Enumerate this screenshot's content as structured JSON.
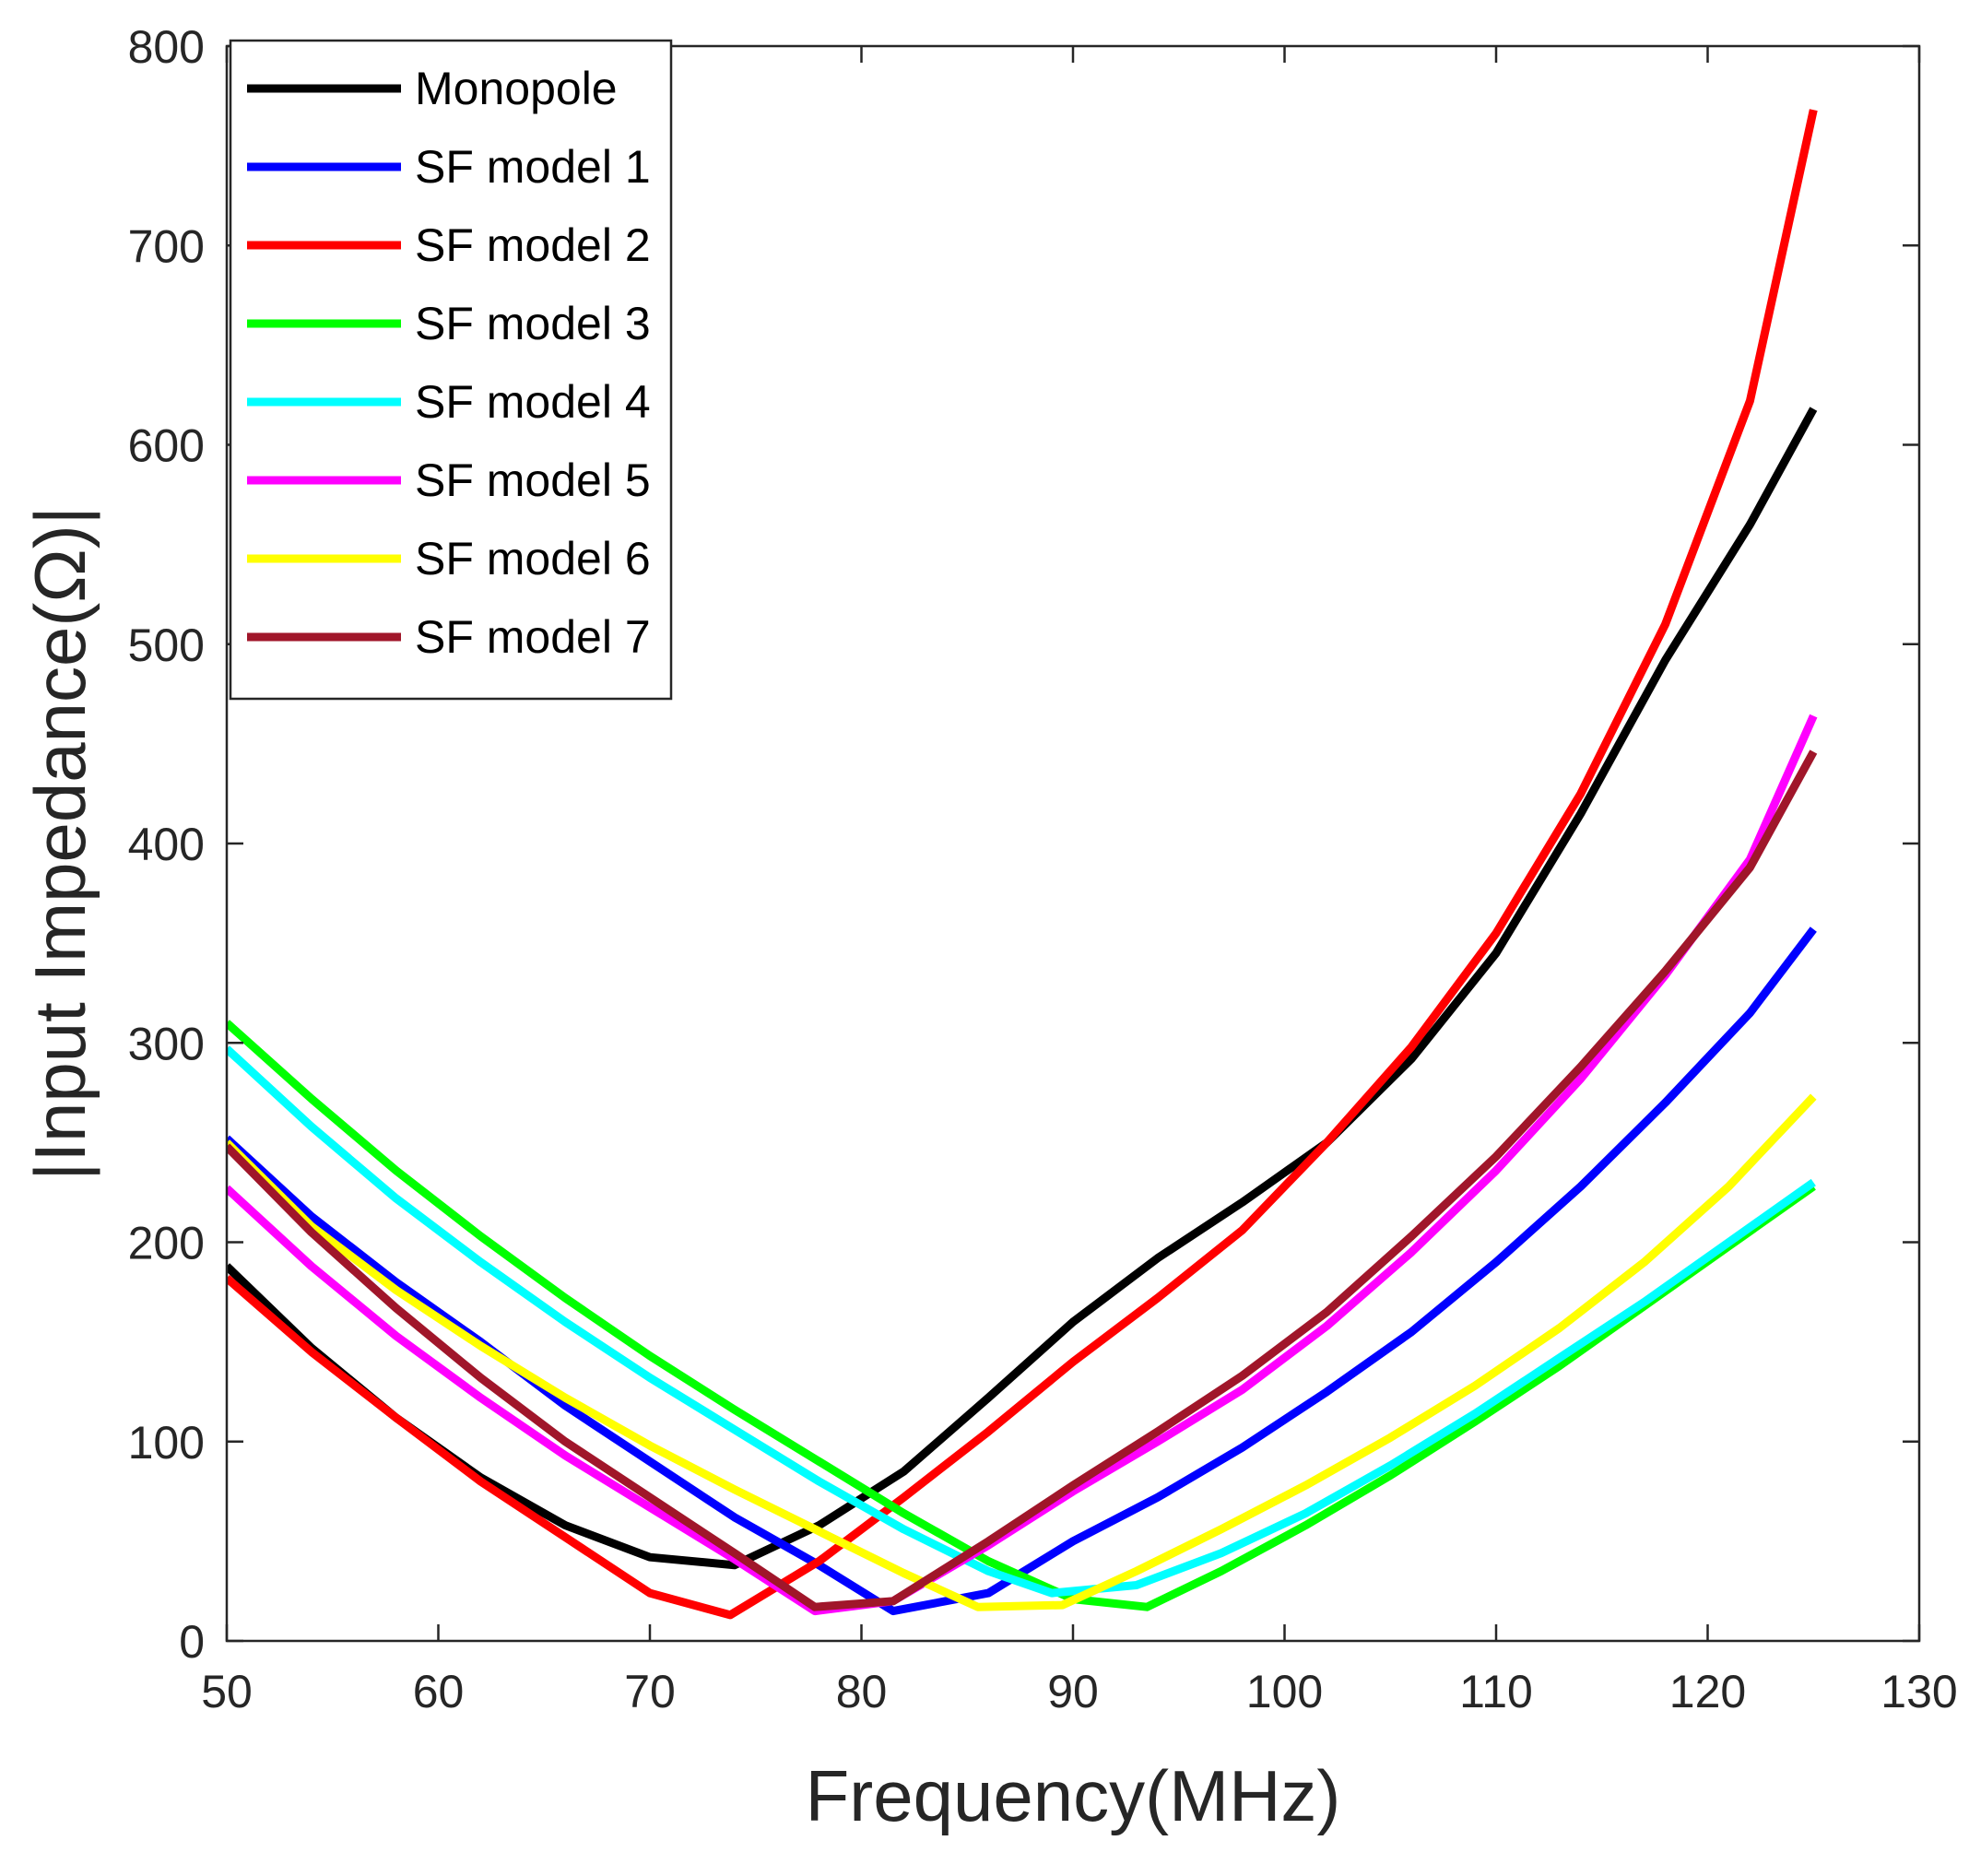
{
  "chart_data": {
    "type": "line",
    "title": "",
    "xlabel": "Frequency(MHz)",
    "ylabel": "|Input Impedance(Ω)|",
    "xlim": [
      50,
      130
    ],
    "ylim": [
      0,
      800
    ],
    "xticks": [
      50,
      60,
      70,
      80,
      90,
      100,
      110,
      120,
      130
    ],
    "yticks": [
      0,
      100,
      200,
      300,
      400,
      500,
      600,
      700,
      800
    ],
    "xtick_labels": [
      "50",
      "60",
      "70",
      "80",
      "90",
      "100",
      "110",
      "120",
      "130"
    ],
    "ytick_labels": [
      "0",
      "100",
      "200",
      "300",
      "400",
      "500",
      "600",
      "700",
      "800"
    ],
    "grid": false,
    "legend_position": "top-left",
    "x": [
      50,
      54,
      58,
      62,
      66,
      70,
      74,
      78,
      82,
      86,
      90,
      94,
      98,
      102,
      106,
      110,
      114,
      118,
      122,
      126
    ],
    "series": [
      {
        "name": "Monopole",
        "color": "#000000",
        "points": [
          [
            50,
            188
          ],
          [
            54,
            147
          ],
          [
            58,
            112
          ],
          [
            62,
            82
          ],
          [
            66,
            58
          ],
          [
            70,
            42
          ],
          [
            74,
            38
          ],
          [
            78,
            58
          ],
          [
            82,
            85
          ],
          [
            86,
            122
          ],
          [
            90,
            160
          ],
          [
            94,
            192
          ],
          [
            98,
            220
          ],
          [
            102,
            250
          ],
          [
            106,
            292
          ],
          [
            110,
            345
          ],
          [
            114,
            415
          ],
          [
            118,
            492
          ],
          [
            122,
            560
          ],
          [
            125,
            618
          ]
        ]
      },
      {
        "name": "SF model 1",
        "color": "#0000ff",
        "points": [
          [
            50,
            252
          ],
          [
            54,
            213
          ],
          [
            58,
            180
          ],
          [
            62,
            150
          ],
          [
            66,
            118
          ],
          [
            70,
            90
          ],
          [
            74,
            62
          ],
          [
            78,
            38
          ],
          [
            81.5,
            15
          ],
          [
            86,
            24
          ],
          [
            90,
            50
          ],
          [
            94,
            72
          ],
          [
            98,
            97
          ],
          [
            102,
            125
          ],
          [
            106,
            155
          ],
          [
            110,
            190
          ],
          [
            114,
            228
          ],
          [
            118,
            270
          ],
          [
            122,
            315
          ],
          [
            125,
            357
          ]
        ]
      },
      {
        "name": "SF model 2",
        "color": "#ff0000",
        "points": [
          [
            50,
            182
          ],
          [
            54,
            145
          ],
          [
            58,
            112
          ],
          [
            62,
            80
          ],
          [
            66,
            52
          ],
          [
            70,
            24
          ],
          [
            73.8,
            13
          ],
          [
            78,
            40
          ],
          [
            82,
            72
          ],
          [
            86,
            105
          ],
          [
            90,
            140
          ],
          [
            94,
            172
          ],
          [
            98,
            206
          ],
          [
            102,
            250
          ],
          [
            106,
            298
          ],
          [
            110,
            355
          ],
          [
            114,
            425
          ],
          [
            118,
            510
          ],
          [
            122,
            622
          ],
          [
            125,
            768
          ]
        ]
      },
      {
        "name": "SF model 3",
        "color": "#00ff00",
        "points": [
          [
            50,
            310
          ],
          [
            54,
            272
          ],
          [
            58,
            236
          ],
          [
            62,
            203
          ],
          [
            66,
            172
          ],
          [
            70,
            143
          ],
          [
            74,
            116
          ],
          [
            78,
            90
          ],
          [
            82,
            64
          ],
          [
            86,
            40
          ],
          [
            90,
            21
          ],
          [
            93.5,
            17
          ],
          [
            97,
            35
          ],
          [
            101,
            58
          ],
          [
            105,
            83
          ],
          [
            109,
            110
          ],
          [
            113,
            138
          ],
          [
            117,
            168
          ],
          [
            121,
            198
          ],
          [
            125,
            228
          ]
        ]
      },
      {
        "name": "SF model 4",
        "color": "#00ffff",
        "points": [
          [
            50,
            297
          ],
          [
            54,
            258
          ],
          [
            58,
            222
          ],
          [
            62,
            190
          ],
          [
            66,
            160
          ],
          [
            70,
            132
          ],
          [
            74,
            106
          ],
          [
            78,
            80
          ],
          [
            82,
            56
          ],
          [
            86,
            35
          ],
          [
            89,
            24
          ],
          [
            93,
            28
          ],
          [
            97,
            44
          ],
          [
            101,
            64
          ],
          [
            105,
            88
          ],
          [
            109,
            114
          ],
          [
            113,
            142
          ],
          [
            117,
            170
          ],
          [
            121,
            200
          ],
          [
            125,
            230
          ]
        ]
      },
      {
        "name": "SF model 5",
        "color": "#ff00ff",
        "points": [
          [
            50,
            227
          ],
          [
            54,
            188
          ],
          [
            58,
            153
          ],
          [
            62,
            122
          ],
          [
            66,
            93
          ],
          [
            70,
            67
          ],
          [
            74,
            41
          ],
          [
            77.8,
            15
          ],
          [
            81.5,
            20
          ],
          [
            86,
            48
          ],
          [
            90,
            75
          ],
          [
            94,
            100
          ],
          [
            98,
            126
          ],
          [
            102,
            158
          ],
          [
            106,
            195
          ],
          [
            110,
            236
          ],
          [
            114,
            282
          ],
          [
            118,
            334
          ],
          [
            122,
            392
          ],
          [
            125,
            464
          ]
        ]
      },
      {
        "name": "SF model 6",
        "color": "#ffff00",
        "points": [
          [
            50,
            250
          ],
          [
            54,
            208
          ],
          [
            58,
            176
          ],
          [
            62,
            148
          ],
          [
            66,
            122
          ],
          [
            70,
            98
          ],
          [
            74,
            76
          ],
          [
            78,
            55
          ],
          [
            82,
            34
          ],
          [
            85.5,
            17
          ],
          [
            89.5,
            18
          ],
          [
            93,
            35
          ],
          [
            97,
            56
          ],
          [
            101,
            78
          ],
          [
            105,
            102
          ],
          [
            109,
            128
          ],
          [
            113,
            157
          ],
          [
            117,
            190
          ],
          [
            121,
            228
          ],
          [
            125,
            273
          ]
        ]
      },
      {
        "name": "SF model 7",
        "color": "#a0162a",
        "points": [
          [
            50,
            248
          ],
          [
            54,
            205
          ],
          [
            58,
            167
          ],
          [
            62,
            132
          ],
          [
            66,
            100
          ],
          [
            70,
            72
          ],
          [
            74,
            44
          ],
          [
            77.8,
            17
          ],
          [
            81.5,
            20
          ],
          [
            86,
            50
          ],
          [
            90,
            78
          ],
          [
            94,
            105
          ],
          [
            98,
            133
          ],
          [
            102,
            165
          ],
          [
            106,
            203
          ],
          [
            110,
            243
          ],
          [
            114,
            288
          ],
          [
            118,
            336
          ],
          [
            122,
            388
          ],
          [
            125,
            446
          ]
        ]
      }
    ]
  }
}
